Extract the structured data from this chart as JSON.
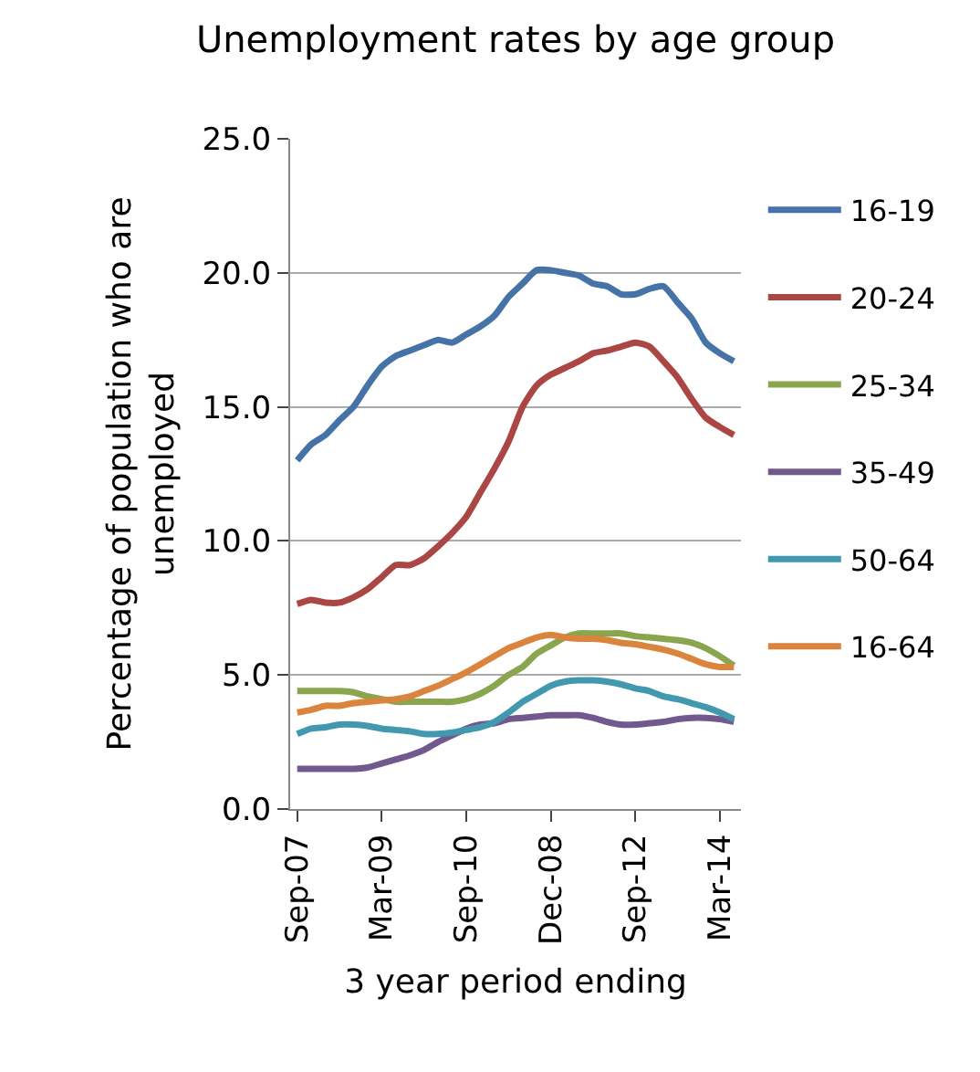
{
  "chart_data": {
    "type": "line",
    "title": "Unemployment rates by age group",
    "xlabel": "3 year period ending",
    "ylabel": "Percentage of population who are unemployed",
    "categories": [
      "Sep-07",
      null,
      null,
      null,
      null,
      null,
      "Mar-09",
      null,
      null,
      null,
      null,
      null,
      "Sep-10",
      null,
      null,
      null,
      null,
      null,
      "Dec-08",
      null,
      null,
      null,
      null,
      null,
      "Sep-12",
      null,
      null,
      null,
      null,
      null,
      "Mar-14",
      null
    ],
    "series": [
      {
        "name": "16-19",
        "color": "#4572a7",
        "values": [
          13.0,
          13.6,
          13.95,
          14.5,
          15.0,
          15.8,
          16.5,
          16.9,
          17.1,
          17.3,
          17.5,
          17.4,
          17.7,
          18.0,
          18.4,
          19.1,
          19.6,
          20.1,
          20.1,
          20.0,
          19.9,
          19.6,
          19.5,
          19.2,
          19.2,
          19.4,
          19.5,
          18.9,
          18.3,
          17.4,
          17.0,
          16.7
        ]
      },
      {
        "name": "20-24",
        "color": "#aa4643",
        "values": [
          7.65,
          7.8,
          7.7,
          7.7,
          7.9,
          8.2,
          8.65,
          9.1,
          9.1,
          9.35,
          9.8,
          10.3,
          10.9,
          11.8,
          12.7,
          13.7,
          15.0,
          15.8,
          16.2,
          16.45,
          16.7,
          17.0,
          17.1,
          17.25,
          17.4,
          17.25,
          16.7,
          16.1,
          15.3,
          14.6,
          14.25,
          13.95
        ]
      },
      {
        "name": "25-34",
        "color": "#89a54e",
        "values": [
          4.4,
          4.4,
          4.4,
          4.4,
          4.35,
          4.2,
          4.1,
          4.0,
          4.0,
          4.0,
          4.0,
          4.0,
          4.1,
          4.3,
          4.6,
          5.0,
          5.3,
          5.8,
          6.1,
          6.4,
          6.55,
          6.55,
          6.55,
          6.55,
          6.45,
          6.4,
          6.35,
          6.3,
          6.2,
          6.0,
          5.7,
          5.35
        ]
      },
      {
        "name": "35-49",
        "color": "#71588f",
        "values": [
          1.5,
          1.5,
          1.5,
          1.5,
          1.5,
          1.55,
          1.7,
          1.85,
          2.0,
          2.2,
          2.5,
          2.75,
          3.0,
          3.15,
          3.2,
          3.35,
          3.4,
          3.45,
          3.5,
          3.5,
          3.5,
          3.4,
          3.25,
          3.15,
          3.15,
          3.2,
          3.25,
          3.35,
          3.4,
          3.4,
          3.35,
          3.25
        ]
      },
      {
        "name": "50-64",
        "color": "#4198af",
        "values": [
          2.8,
          3.0,
          3.05,
          3.15,
          3.15,
          3.1,
          3.0,
          2.95,
          2.9,
          2.8,
          2.8,
          2.85,
          2.95,
          3.05,
          3.25,
          3.6,
          4.0,
          4.3,
          4.6,
          4.75,
          4.8,
          4.8,
          4.75,
          4.65,
          4.5,
          4.4,
          4.2,
          4.1,
          3.95,
          3.8,
          3.6,
          3.35
        ]
      },
      {
        "name": "16-64",
        "color": "#db843d",
        "values": [
          3.6,
          3.7,
          3.85,
          3.85,
          3.95,
          4.0,
          4.05,
          4.1,
          4.2,
          4.4,
          4.6,
          4.85,
          5.1,
          5.4,
          5.7,
          6.0,
          6.2,
          6.4,
          6.5,
          6.4,
          6.35,
          6.35,
          6.3,
          6.2,
          6.15,
          6.05,
          5.95,
          5.8,
          5.6,
          5.4,
          5.3,
          5.3
        ]
      }
    ],
    "ylim": [
      0,
      25
    ],
    "yticks": [
      {
        "value": 0,
        "label": "0.0"
      },
      {
        "value": 5,
        "label": "5.0"
      },
      {
        "value": 10,
        "label": "10.0"
      },
      {
        "value": 15,
        "label": "15.0"
      },
      {
        "value": 20,
        "label": "20.0"
      },
      {
        "value": 25,
        "label": "25.0"
      }
    ],
    "grid": "y",
    "legend": "right",
    "marker": "none",
    "line_style": "solid"
  }
}
